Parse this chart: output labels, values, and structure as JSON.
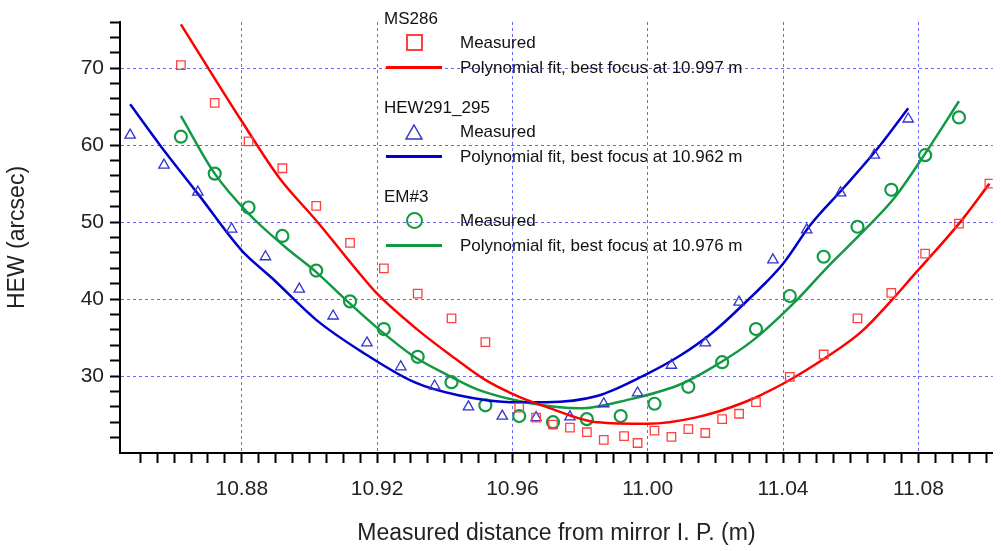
{
  "chart_data": {
    "type": "scatter",
    "xlabel": "Measured distance from mirror I. P. (m)",
    "ylabel": "HEW (arcsec)",
    "annotations": [
      "MS286",
      "HEW291_295",
      "EM#3"
    ],
    "legend": "top",
    "grid": true,
    "xlim": [
      10.844,
      11.102
    ],
    "ylim": [
      20,
      76
    ],
    "xticks": [
      {
        "value": 10.85,
        "label": null
      },
      {
        "value": 10.855,
        "label": null
      },
      {
        "value": 10.86,
        "label": null
      },
      {
        "value": 10.865,
        "label": null
      },
      {
        "value": 10.87,
        "label": null
      },
      {
        "value": 10.875,
        "label": null
      },
      {
        "value": 10.88,
        "label": "10.88"
      },
      {
        "value": 10.885,
        "label": null
      },
      {
        "value": 10.89,
        "label": null
      },
      {
        "value": 10.895,
        "label": null
      },
      {
        "value": 10.9,
        "label": null
      },
      {
        "value": 10.905,
        "label": null
      },
      {
        "value": 10.91,
        "label": null
      },
      {
        "value": 10.915,
        "label": null
      },
      {
        "value": 10.92,
        "label": "10.92"
      },
      {
        "value": 10.925,
        "label": null
      },
      {
        "value": 10.93,
        "label": null
      },
      {
        "value": 10.935,
        "label": null
      },
      {
        "value": 10.94,
        "label": null
      },
      {
        "value": 10.945,
        "label": null
      },
      {
        "value": 10.95,
        "label": null
      },
      {
        "value": 10.955,
        "label": null
      },
      {
        "value": 10.96,
        "label": "10.96"
      },
      {
        "value": 10.965,
        "label": null
      },
      {
        "value": 10.97,
        "label": null
      },
      {
        "value": 10.975,
        "label": null
      },
      {
        "value": 10.98,
        "label": null
      },
      {
        "value": 10.985,
        "label": null
      },
      {
        "value": 10.99,
        "label": null
      },
      {
        "value": 10.995,
        "label": null
      },
      {
        "value": 11.0,
        "label": "11.00"
      },
      {
        "value": 11.005,
        "label": null
      },
      {
        "value": 11.01,
        "label": null
      },
      {
        "value": 11.015,
        "label": null
      },
      {
        "value": 11.02,
        "label": null
      },
      {
        "value": 11.025,
        "label": null
      },
      {
        "value": 11.03,
        "label": null
      },
      {
        "value": 11.035,
        "label": null
      },
      {
        "value": 11.04,
        "label": "11.04"
      },
      {
        "value": 11.045,
        "label": null
      },
      {
        "value": 11.05,
        "label": null
      },
      {
        "value": 11.055,
        "label": null
      },
      {
        "value": 11.06,
        "label": null
      },
      {
        "value": 11.065,
        "label": null
      },
      {
        "value": 11.07,
        "label": null
      },
      {
        "value": 11.075,
        "label": null
      },
      {
        "value": 11.08,
        "label": "11.08"
      },
      {
        "value": 11.085,
        "label": null
      },
      {
        "value": 11.09,
        "label": null
      },
      {
        "value": 11.095,
        "label": null
      },
      {
        "value": 11.1,
        "label": null
      }
    ],
    "yticks": [
      {
        "value": 22,
        "label": null
      },
      {
        "value": 24,
        "label": null
      },
      {
        "value": 26,
        "label": null
      },
      {
        "value": 28,
        "label": null
      },
      30,
      {
        "value": 32,
        "label": null
      },
      {
        "value": 34,
        "label": null
      },
      {
        "value": 36,
        "label": null
      },
      {
        "value": 38,
        "label": null
      },
      40,
      {
        "value": 42,
        "label": null
      },
      {
        "value": 44,
        "label": null
      },
      {
        "value": 46,
        "label": null
      },
      {
        "value": 48,
        "label": null
      },
      50,
      {
        "value": 52,
        "label": null
      },
      {
        "value": 54,
        "label": null
      },
      {
        "value": 56,
        "label": null
      },
      {
        "value": 58,
        "label": null
      },
      60,
      {
        "value": 62,
        "label": null
      },
      {
        "value": 64,
        "label": null
      },
      {
        "value": 66,
        "label": null
      },
      {
        "value": 68,
        "label": null
      },
      70,
      {
        "value": 72,
        "label": null
      },
      {
        "value": 74,
        "label": null
      },
      {
        "value": 76,
        "label": null
      }
    ],
    "series": [
      {
        "name": "Measured",
        "type": "scatter",
        "marker": "square",
        "color": "#ff4040",
        "x": [
          10.862,
          10.872,
          10.882,
          10.892,
          10.902,
          10.912,
          10.922,
          10.932,
          10.942,
          10.952,
          10.962,
          10.967,
          10.972,
          10.977,
          10.982,
          10.987,
          10.993,
          10.997,
          11.002,
          11.007,
          11.012,
          11.017,
          11.022,
          11.027,
          11.032,
          11.042,
          11.052,
          11.062,
          11.072,
          11.082,
          11.092,
          11.101
        ],
        "values": [
          70.4,
          65.5,
          60.5,
          57.0,
          52.1,
          47.3,
          44.0,
          40.7,
          37.5,
          34.4,
          25.9,
          24.6,
          23.7,
          23.3,
          22.7,
          21.7,
          22.2,
          21.3,
          22.9,
          22.1,
          23.1,
          22.6,
          24.4,
          25.1,
          26.6,
          29.9,
          32.8,
          37.5,
          40.8,
          45.9,
          49.8,
          55.0
        ]
      },
      {
        "name": "Polynomial fit, best focus at 10.997 m",
        "type": "line",
        "marker": "none",
        "color": "#ff0000",
        "x": [
          10.862,
          10.88,
          10.891,
          10.902,
          10.916,
          10.92,
          10.932,
          10.943,
          10.952,
          10.962,
          10.97,
          10.985,
          11.0,
          11.014,
          11.028,
          11.04,
          11.053,
          11.063,
          11.072,
          11.079,
          11.092,
          11.101
        ],
        "values": [
          75.7,
          63.1,
          55.8,
          50.2,
          42.7,
          40.7,
          36.0,
          32.3,
          29.5,
          27.3,
          26.0,
          24.0,
          23.8,
          24.6,
          26.5,
          29.0,
          32.5,
          35.7,
          39.8,
          43.3,
          49.8,
          55.0
        ]
      },
      {
        "name": "Measured",
        "type": "scatter",
        "marker": "triangle",
        "color": "#3333cc",
        "x": [
          10.847,
          10.857,
          10.867,
          10.877,
          10.887,
          10.897,
          10.907,
          10.917,
          10.927,
          10.937,
          10.947,
          10.957,
          10.967,
          10.977,
          10.987,
          10.997,
          11.007,
          11.017,
          11.027,
          11.037,
          11.047,
          11.057,
          11.067,
          11.077
        ],
        "values": [
          61.3,
          57.4,
          53.9,
          49.1,
          45.5,
          41.3,
          37.8,
          34.3,
          31.2,
          28.7,
          26.0,
          24.8,
          24.6,
          24.7,
          26.4,
          27.8,
          31.4,
          34.3,
          39.6,
          45.1,
          49.0,
          53.8,
          58.7,
          63.4
        ]
      },
      {
        "name": "Polynomial fit, best focus at 10.962 m",
        "type": "line",
        "marker": "none",
        "color": "#0000cc",
        "x": [
          10.847,
          10.856,
          10.867,
          10.88,
          10.889,
          10.902,
          10.916,
          10.931,
          10.944,
          10.96,
          10.97,
          10.985,
          10.999,
          11.009,
          11.019,
          11.028,
          11.04,
          11.048,
          11.058,
          11.068,
          11.077
        ],
        "values": [
          65.3,
          59.9,
          53.7,
          46.3,
          42.7,
          37.3,
          33.0,
          29.2,
          27.5,
          26.6,
          26.6,
          27.4,
          30.1,
          32.5,
          35.6,
          39.2,
          44.6,
          49.6,
          54.5,
          59.6,
          64.8
        ]
      },
      {
        "name": "Measured",
        "type": "scatter",
        "marker": "circle",
        "color": "#119944",
        "x": [
          10.862,
          10.872,
          10.882,
          10.892,
          10.902,
          10.912,
          10.922,
          10.932,
          10.942,
          10.952,
          10.962,
          10.972,
          10.982,
          10.992,
          11.002,
          11.012,
          11.022,
          11.032,
          11.042,
          11.052,
          11.062,
          11.072,
          11.082,
          11.092
        ],
        "values": [
          61.1,
          56.3,
          51.9,
          48.2,
          43.7,
          39.7,
          36.1,
          32.5,
          29.2,
          26.2,
          24.8,
          24.0,
          24.4,
          24.8,
          26.4,
          28.6,
          31.8,
          36.1,
          40.4,
          45.5,
          49.4,
          54.2,
          58.7,
          63.6
        ]
      },
      {
        "name": "Polynomial fit, best focus at 10.976 m",
        "type": "line",
        "marker": "none",
        "color": "#119944",
        "x": [
          10.862,
          10.872,
          10.882,
          10.893,
          10.902,
          10.911,
          10.921,
          10.931,
          10.941,
          10.95,
          10.965,
          10.98,
          10.994,
          11.009,
          11.019,
          11.031,
          11.043,
          11.053,
          11.063,
          11.073,
          11.082,
          11.092
        ],
        "values": [
          63.8,
          56.3,
          51.1,
          46.7,
          43.5,
          39.8,
          35.9,
          32.5,
          30.1,
          28.2,
          26.5,
          25.8,
          26.9,
          28.8,
          31.1,
          34.6,
          39.4,
          44.1,
          48.5,
          53.2,
          58.9,
          65.7
        ]
      }
    ]
  }
}
